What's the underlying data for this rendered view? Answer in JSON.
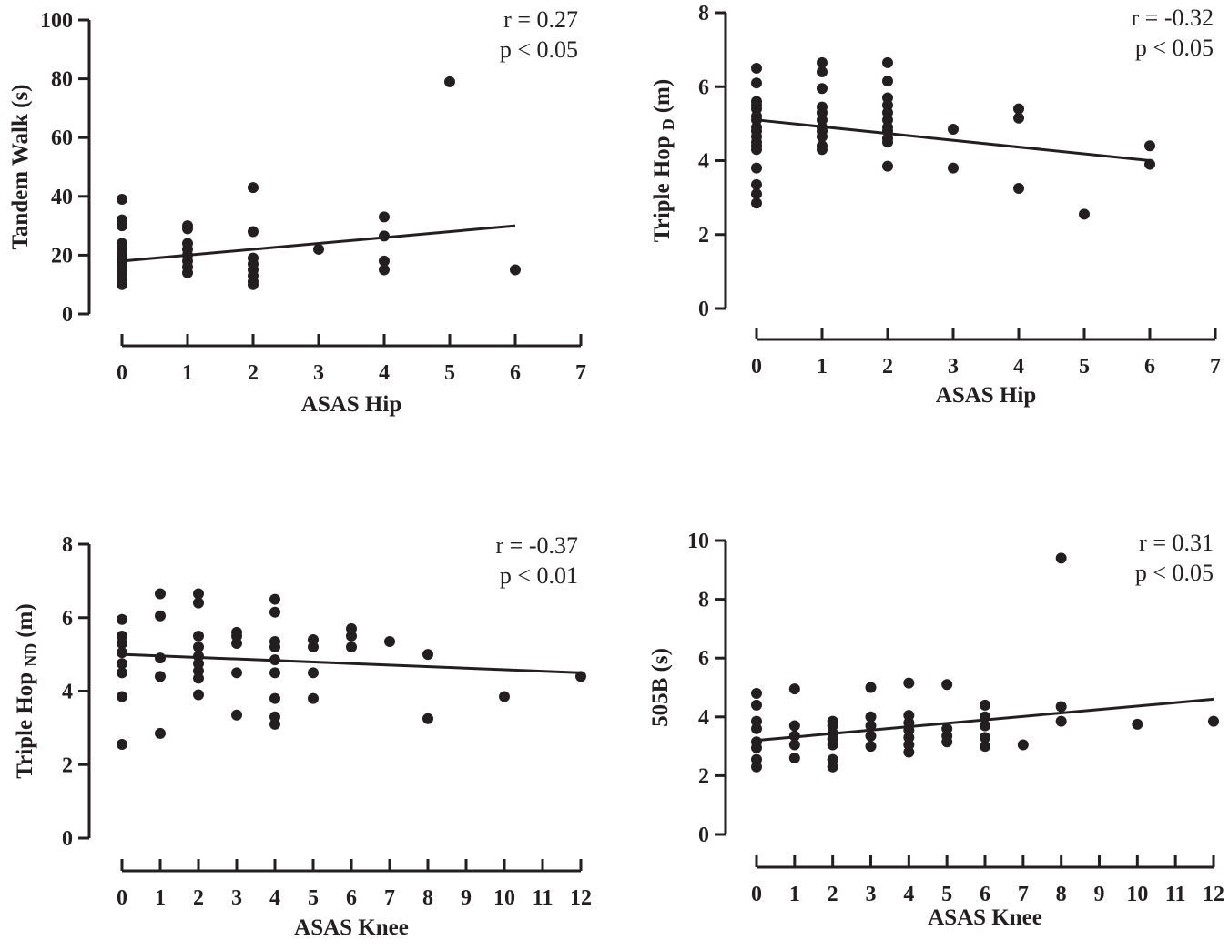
{
  "chart_data": [
    {
      "type": "scatter",
      "xlabel": "ASAS Hip",
      "ylabel": {
        "main": "Tandem Walk (s)",
        "sub": "",
        "unit": ""
      },
      "xlim": [
        0,
        7
      ],
      "ylim": [
        0,
        100
      ],
      "xticks": [
        0,
        1,
        2,
        3,
        4,
        5,
        6,
        7
      ],
      "yticks": [
        0,
        20,
        40,
        60,
        80,
        100
      ],
      "annotation": {
        "r": "r = 0.27",
        "p": "p < 0.05"
      },
      "fit_line": {
        "x": [
          0,
          6
        ],
        "y": [
          18,
          30
        ]
      },
      "points": [
        [
          0,
          39
        ],
        [
          0,
          32
        ],
        [
          0,
          30
        ],
        [
          0,
          24
        ],
        [
          0,
          22
        ],
        [
          0,
          20
        ],
        [
          0,
          18
        ],
        [
          0,
          16
        ],
        [
          0,
          14
        ],
        [
          0,
          12
        ],
        [
          0,
          10
        ],
        [
          1,
          30
        ],
        [
          1,
          29
        ],
        [
          1,
          24
        ],
        [
          1,
          22
        ],
        [
          1,
          20
        ],
        [
          1,
          18
        ],
        [
          1,
          16
        ],
        [
          1,
          14
        ],
        [
          2,
          43
        ],
        [
          2,
          28
        ],
        [
          2,
          19
        ],
        [
          2,
          17
        ],
        [
          2,
          15
        ],
        [
          2,
          13
        ],
        [
          2,
          11
        ],
        [
          2,
          10
        ],
        [
          3,
          22
        ],
        [
          4,
          33
        ],
        [
          4,
          26.5
        ],
        [
          4,
          18
        ],
        [
          4,
          15
        ],
        [
          5,
          79
        ],
        [
          6,
          15
        ]
      ]
    },
    {
      "type": "scatter",
      "xlabel": "ASAS Hip",
      "ylabel": {
        "main": "Triple Hop",
        "sub": "D",
        "unit": "(m)"
      },
      "xlim": [
        0,
        7
      ],
      "ylim": [
        0,
        8
      ],
      "xticks": [
        0,
        1,
        2,
        3,
        4,
        5,
        6,
        7
      ],
      "yticks": [
        0,
        2,
        4,
        6,
        8
      ],
      "annotation": {
        "r": "r = -0.32",
        "p": "p < 0.05"
      },
      "fit_line": {
        "x": [
          0,
          6
        ],
        "y": [
          5.1,
          4.0
        ]
      },
      "points": [
        [
          0,
          6.5
        ],
        [
          0,
          6.1
        ],
        [
          0,
          5.6
        ],
        [
          0,
          5.5
        ],
        [
          0,
          5.4
        ],
        [
          0,
          5.2
        ],
        [
          0,
          5.1
        ],
        [
          0,
          4.9
        ],
        [
          0,
          4.8
        ],
        [
          0,
          4.65
        ],
        [
          0,
          4.5
        ],
        [
          0,
          4.4
        ],
        [
          0,
          4.3
        ],
        [
          0,
          3.8
        ],
        [
          0,
          3.35
        ],
        [
          0,
          3.1
        ],
        [
          0,
          2.85
        ],
        [
          1,
          6.65
        ],
        [
          1,
          6.4
        ],
        [
          1,
          5.95
        ],
        [
          1,
          5.45
        ],
        [
          1,
          5.3
        ],
        [
          1,
          5.1
        ],
        [
          1,
          4.9
        ],
        [
          1,
          4.8
        ],
        [
          1,
          4.65
        ],
        [
          1,
          4.4
        ],
        [
          1,
          4.3
        ],
        [
          2,
          6.65
        ],
        [
          2,
          6.15
        ],
        [
          2,
          5.7
        ],
        [
          2,
          5.5
        ],
        [
          2,
          5.3
        ],
        [
          2,
          5.1
        ],
        [
          2,
          4.9
        ],
        [
          2,
          4.8
        ],
        [
          2,
          4.6
        ],
        [
          2,
          4.5
        ],
        [
          2,
          3.85
        ],
        [
          3,
          4.85
        ],
        [
          3,
          3.8
        ],
        [
          4,
          5.4
        ],
        [
          4,
          5.15
        ],
        [
          4,
          3.25
        ],
        [
          5,
          2.55
        ],
        [
          6,
          4.4
        ],
        [
          6,
          3.9
        ]
      ]
    },
    {
      "type": "scatter",
      "xlabel": "ASAS Knee",
      "ylabel": {
        "main": "Triple Hop",
        "sub": "ND",
        "unit": "(m)"
      },
      "xlim": [
        0,
        12
      ],
      "ylim": [
        0,
        8
      ],
      "xticks": [
        0,
        1,
        2,
        3,
        4,
        5,
        6,
        7,
        8,
        9,
        10,
        11,
        12
      ],
      "yticks": [
        0,
        2,
        4,
        6,
        8
      ],
      "annotation": {
        "r": "r = -0.37",
        "p": "p < 0.01"
      },
      "fit_line": {
        "x": [
          0,
          12
        ],
        "y": [
          5.0,
          4.5
        ]
      },
      "points": [
        [
          0,
          5.95
        ],
        [
          0,
          5.5
        ],
        [
          0,
          5.3
        ],
        [
          0,
          5.05
        ],
        [
          0,
          4.75
        ],
        [
          0,
          4.5
        ],
        [
          0,
          3.85
        ],
        [
          0,
          2.55
        ],
        [
          1,
          6.65
        ],
        [
          1,
          6.05
        ],
        [
          1,
          4.9
        ],
        [
          1,
          4.4
        ],
        [
          1,
          2.85
        ],
        [
          2,
          6.65
        ],
        [
          2,
          6.4
        ],
        [
          2,
          5.5
        ],
        [
          2,
          5.2
        ],
        [
          2,
          4.95
        ],
        [
          2,
          4.75
        ],
        [
          2,
          4.55
        ],
        [
          2,
          4.35
        ],
        [
          2,
          3.9
        ],
        [
          3,
          5.6
        ],
        [
          3,
          5.5
        ],
        [
          3,
          5.3
        ],
        [
          3,
          4.5
        ],
        [
          3,
          3.35
        ],
        [
          4,
          6.5
        ],
        [
          4,
          6.15
        ],
        [
          4,
          5.35
        ],
        [
          4,
          5.2
        ],
        [
          4,
          4.85
        ],
        [
          4,
          4.5
        ],
        [
          4,
          3.8
        ],
        [
          4,
          3.3
        ],
        [
          4,
          3.1
        ],
        [
          5,
          5.4
        ],
        [
          5,
          5.2
        ],
        [
          5,
          4.5
        ],
        [
          5,
          3.8
        ],
        [
          6,
          5.7
        ],
        [
          6,
          5.5
        ],
        [
          6,
          5.2
        ],
        [
          7,
          5.35
        ],
        [
          8,
          5.0
        ],
        [
          8,
          3.25
        ],
        [
          10,
          3.85
        ],
        [
          12,
          4.4
        ]
      ]
    },
    {
      "type": "scatter",
      "xlabel": "ASAS Knee",
      "ylabel": {
        "main": "505B (s)",
        "sub": "",
        "unit": ""
      },
      "xlim": [
        0,
        12
      ],
      "ylim": [
        0,
        10
      ],
      "xticks": [
        0,
        1,
        2,
        3,
        4,
        5,
        6,
        7,
        8,
        9,
        10,
        11,
        12
      ],
      "yticks": [
        0,
        2,
        4,
        6,
        8,
        10
      ],
      "annotation": {
        "r": "r = 0.31",
        "p": "p < 0.05"
      },
      "fit_line": {
        "x": [
          0,
          12
        ],
        "y": [
          3.2,
          4.6
        ]
      },
      "points": [
        [
          0,
          4.8
        ],
        [
          0,
          4.4
        ],
        [
          0,
          3.85
        ],
        [
          0,
          3.6
        ],
        [
          0,
          3.15
        ],
        [
          0,
          2.95
        ],
        [
          0,
          2.55
        ],
        [
          0,
          2.3
        ],
        [
          1,
          4.95
        ],
        [
          1,
          3.7
        ],
        [
          1,
          3.35
        ],
        [
          1,
          3.05
        ],
        [
          1,
          2.6
        ],
        [
          2,
          3.85
        ],
        [
          2,
          3.7
        ],
        [
          2,
          3.45
        ],
        [
          2,
          3.25
        ],
        [
          2,
          3.05
        ],
        [
          2,
          2.55
        ],
        [
          2,
          2.3
        ],
        [
          3,
          5.0
        ],
        [
          3,
          4.0
        ],
        [
          3,
          3.7
        ],
        [
          3,
          3.35
        ],
        [
          3,
          3.0
        ],
        [
          4,
          5.15
        ],
        [
          4,
          4.05
        ],
        [
          4,
          3.8
        ],
        [
          4,
          3.55
        ],
        [
          4,
          3.3
        ],
        [
          4,
          3.05
        ],
        [
          4,
          2.8
        ],
        [
          5,
          5.1
        ],
        [
          5,
          3.6
        ],
        [
          5,
          3.35
        ],
        [
          5,
          3.15
        ],
        [
          6,
          4.4
        ],
        [
          6,
          4.0
        ],
        [
          6,
          3.7
        ],
        [
          6,
          3.3
        ],
        [
          6,
          3.0
        ],
        [
          7,
          3.05
        ],
        [
          8,
          9.4
        ],
        [
          8,
          4.35
        ],
        [
          8,
          3.85
        ],
        [
          10,
          3.75
        ],
        [
          12,
          3.85
        ]
      ]
    }
  ]
}
